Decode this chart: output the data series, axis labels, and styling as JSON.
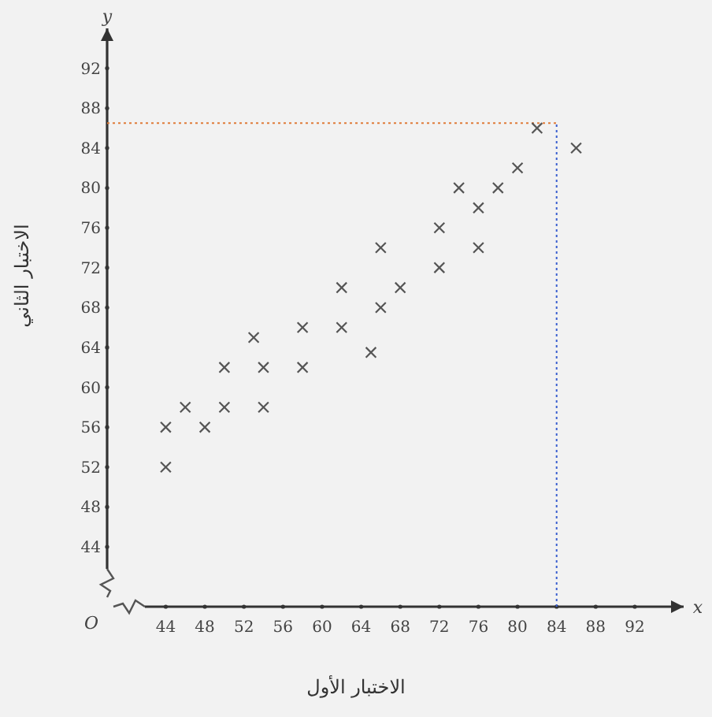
{
  "chart_data": {
    "type": "scatter",
    "xlabel": "الاختبار الأول",
    "ylabel": "الاختبار الثاني",
    "x": [
      44,
      44,
      46,
      48,
      50,
      50,
      53,
      54,
      54,
      58,
      58,
      62,
      62,
      65,
      66,
      66,
      68,
      72,
      72,
      74,
      76,
      76,
      78,
      80,
      82,
      86
    ],
    "values": [
      56,
      52,
      58,
      56,
      58,
      62,
      65,
      62,
      58,
      66,
      62,
      70,
      66,
      63.5,
      74,
      68,
      70,
      72,
      76,
      80,
      78,
      74,
      80,
      82,
      86,
      84
    ],
    "color": "#555555",
    "marker": "cross",
    "grid": false,
    "xlim": [
      38,
      97
    ],
    "ylim": [
      38,
      96
    ],
    "xticks": [
      44,
      48,
      52,
      56,
      60,
      64,
      68,
      72,
      76,
      80,
      84,
      88,
      92
    ],
    "yticks": [
      44,
      48,
      52,
      56,
      60,
      64,
      68,
      72,
      76,
      80,
      84,
      88,
      92
    ],
    "ref_lines": [
      {
        "axis": "y",
        "value": 86.5,
        "color": "#e07b39",
        "line_style": "dotted"
      },
      {
        "axis": "x",
        "value": 84,
        "color": "#3a5fd0",
        "line_style": "dotted"
      }
    ],
    "annotations": [
      "x",
      "y",
      "O"
    ]
  }
}
